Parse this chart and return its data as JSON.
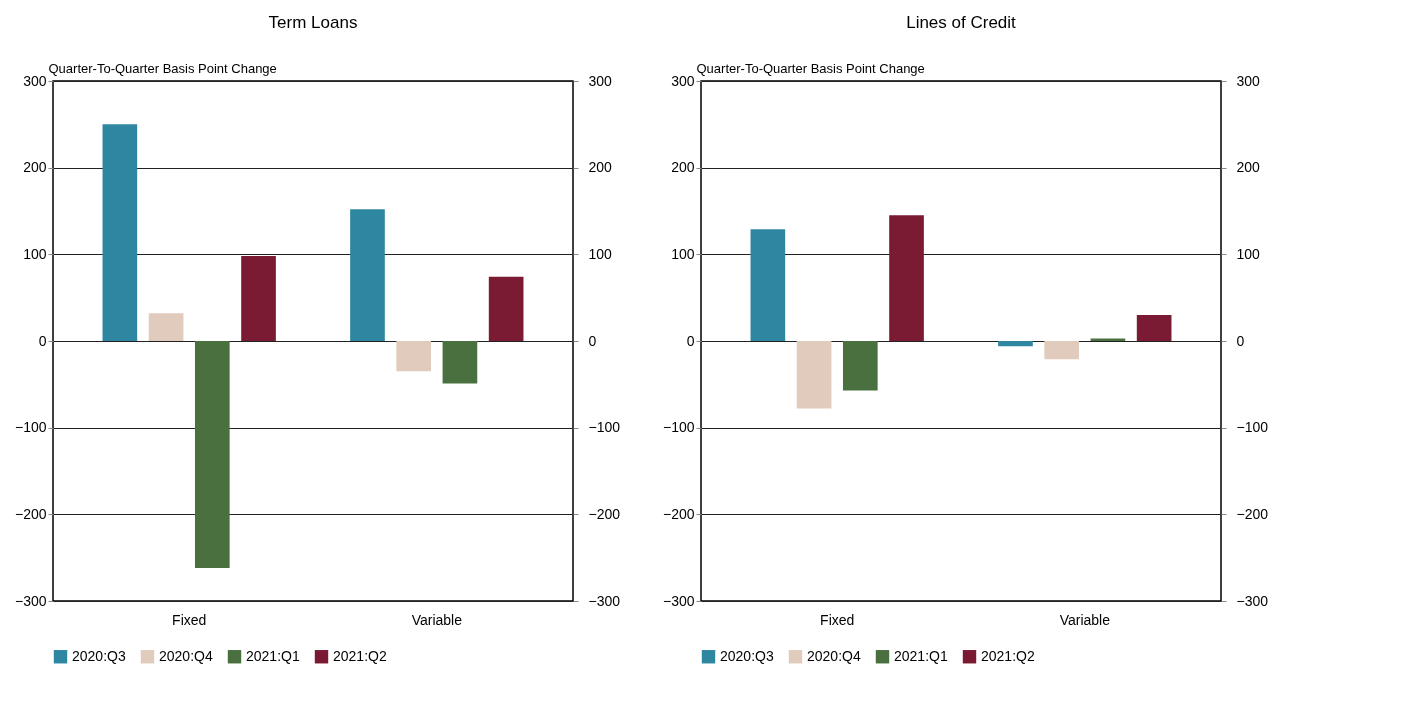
{
  "chart_data": [
    {
      "type": "bar",
      "title": "Term Loans",
      "ylabel": "Quarter-To-Quarter Basis Point Change",
      "categories": [
        "Fixed",
        "Variable"
      ],
      "series": [
        {
          "name": "2020:Q3",
          "color": "#2e86a0",
          "values": [
            250,
            152
          ]
        },
        {
          "name": "2020:Q4",
          "color": "#e0cbbd",
          "values": [
            32,
            -35
          ]
        },
        {
          "name": "2021:Q1",
          "color": "#4a7040",
          "values": [
            -262,
            -49
          ]
        },
        {
          "name": "2021:Q2",
          "color": "#7b1a33",
          "values": [
            98,
            74
          ]
        }
      ],
      "ylim": [
        -300,
        300
      ],
      "yticks": [
        -300,
        -200,
        -100,
        0,
        100,
        200,
        300
      ],
      "y2lim": [
        -300,
        300
      ],
      "y2ticks": [
        -300,
        -200,
        -100,
        0,
        100,
        200,
        300
      ],
      "grid": "y",
      "legend": "bottom"
    },
    {
      "type": "bar",
      "title": "Lines of Credit",
      "ylabel": "Quarter-To-Quarter Basis Point Change",
      "categories": [
        "Fixed",
        "Variable"
      ],
      "series": [
        {
          "name": "2020:Q3",
          "color": "#2e86a0",
          "values": [
            129,
            -6
          ]
        },
        {
          "name": "2020:Q4",
          "color": "#e0cbbd",
          "values": [
            -78,
            -21
          ]
        },
        {
          "name": "2021:Q1",
          "color": "#4a7040",
          "values": [
            -57,
            3
          ]
        },
        {
          "name": "2021:Q2",
          "color": "#7b1a33",
          "values": [
            145,
            30
          ]
        }
      ],
      "ylim": [
        -300,
        300
      ],
      "yticks": [
        -300,
        -200,
        -100,
        0,
        100,
        200,
        300
      ],
      "y2lim": [
        -300,
        300
      ],
      "y2ticks": [
        -300,
        -200,
        -100,
        0,
        100,
        200,
        300
      ],
      "grid": "y",
      "legend": "bottom"
    }
  ]
}
